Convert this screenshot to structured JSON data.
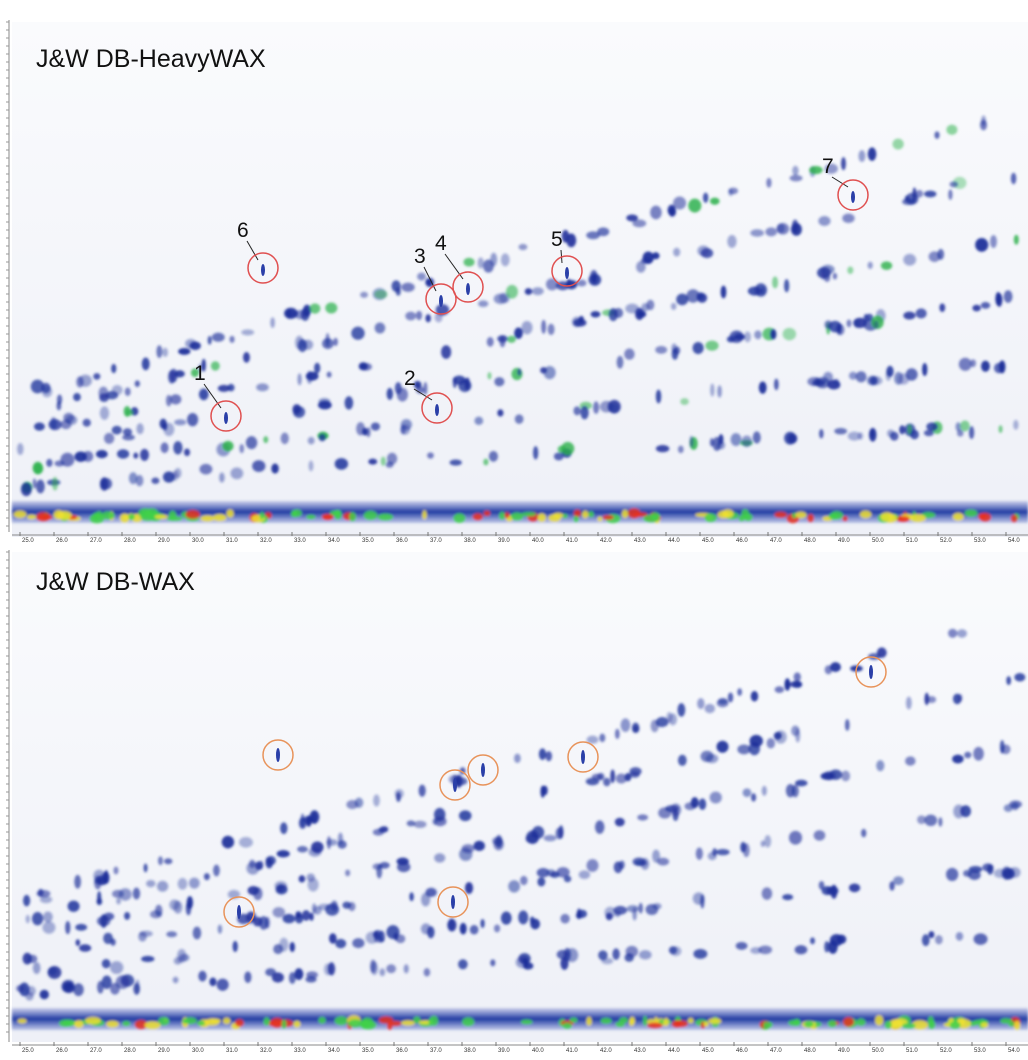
{
  "panels": [
    {
      "title": "J&W DB-HeavyWAX",
      "annotations": [
        "1",
        "2",
        "3",
        "4",
        "5",
        "6",
        "7"
      ],
      "xticks": [
        "25.0",
        "26.0",
        "27.0",
        "28.0",
        "29.0",
        "30.0",
        "31.0",
        "32.0",
        "33.0",
        "34.0",
        "35.0",
        "36.0",
        "37.0",
        "38.0",
        "39.0",
        "40.0",
        "41.0",
        "42.0",
        "43.0",
        "44.0",
        "45.0",
        "46.0",
        "47.0",
        "48.0",
        "49.0",
        "50.0",
        "51.0",
        "52.0",
        "53.0",
        "54.0"
      ]
    },
    {
      "title": "J&W DB-WAX",
      "xticks": [
        "25.0",
        "26.0",
        "27.0",
        "28.0",
        "29.0",
        "30.0",
        "31.0",
        "32.0",
        "33.0",
        "34.0",
        "35.0",
        "36.0",
        "37.0",
        "38.0",
        "39.0",
        "40.0",
        "41.0",
        "42.0",
        "43.0",
        "44.0",
        "45.0",
        "46.0",
        "47.0",
        "48.0",
        "49.0",
        "50.0",
        "51.0",
        "52.0",
        "53.0",
        "54.0"
      ]
    }
  ]
}
